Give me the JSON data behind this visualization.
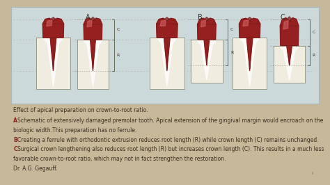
{
  "bg_outer": "#c8b89a",
  "bg_inner": "#e8dfc8",
  "bg_diagram": "#ccd9db",
  "tooth_dark": "#7a1a1a",
  "tooth_mid": "#962020",
  "tooth_light": "#c04040",
  "tooth_highlight": "#d06060",
  "bone_fill": "#f0ece0",
  "bone_edge": "#999988",
  "socket_fill": "#e8e4d8",
  "bracket_color": "#666655",
  "text_color": "#3a3020",
  "label_color": "#8b2020",
  "font_size": 5.5,
  "page_num": "ii",
  "text_line0": "Effect of apical preparation on crown-to-root ratio.",
  "text_A_letter": "A",
  "text_A": "Schematic of extensively damaged premolar tooth. Apical extension of the gingival margin would encroach on the",
  "text_A2": "biologic width.This preparation has no ferrule.",
  "text_B_letter": "B",
  "text_B": "Creating a ferrule with orthodontic extrusion reduces root length (R) while crown length (C) remains unchanged.",
  "text_C_letter": "C",
  "text_C": "Surgical crown lengthening also reduces root length (R) but increases crown length (C). This results in a much less",
  "text_C2": "favorable crown-to-root ratio, which may not in fact strengthen the restoration.",
  "text_author": "Dr. A.G. Gegauff."
}
